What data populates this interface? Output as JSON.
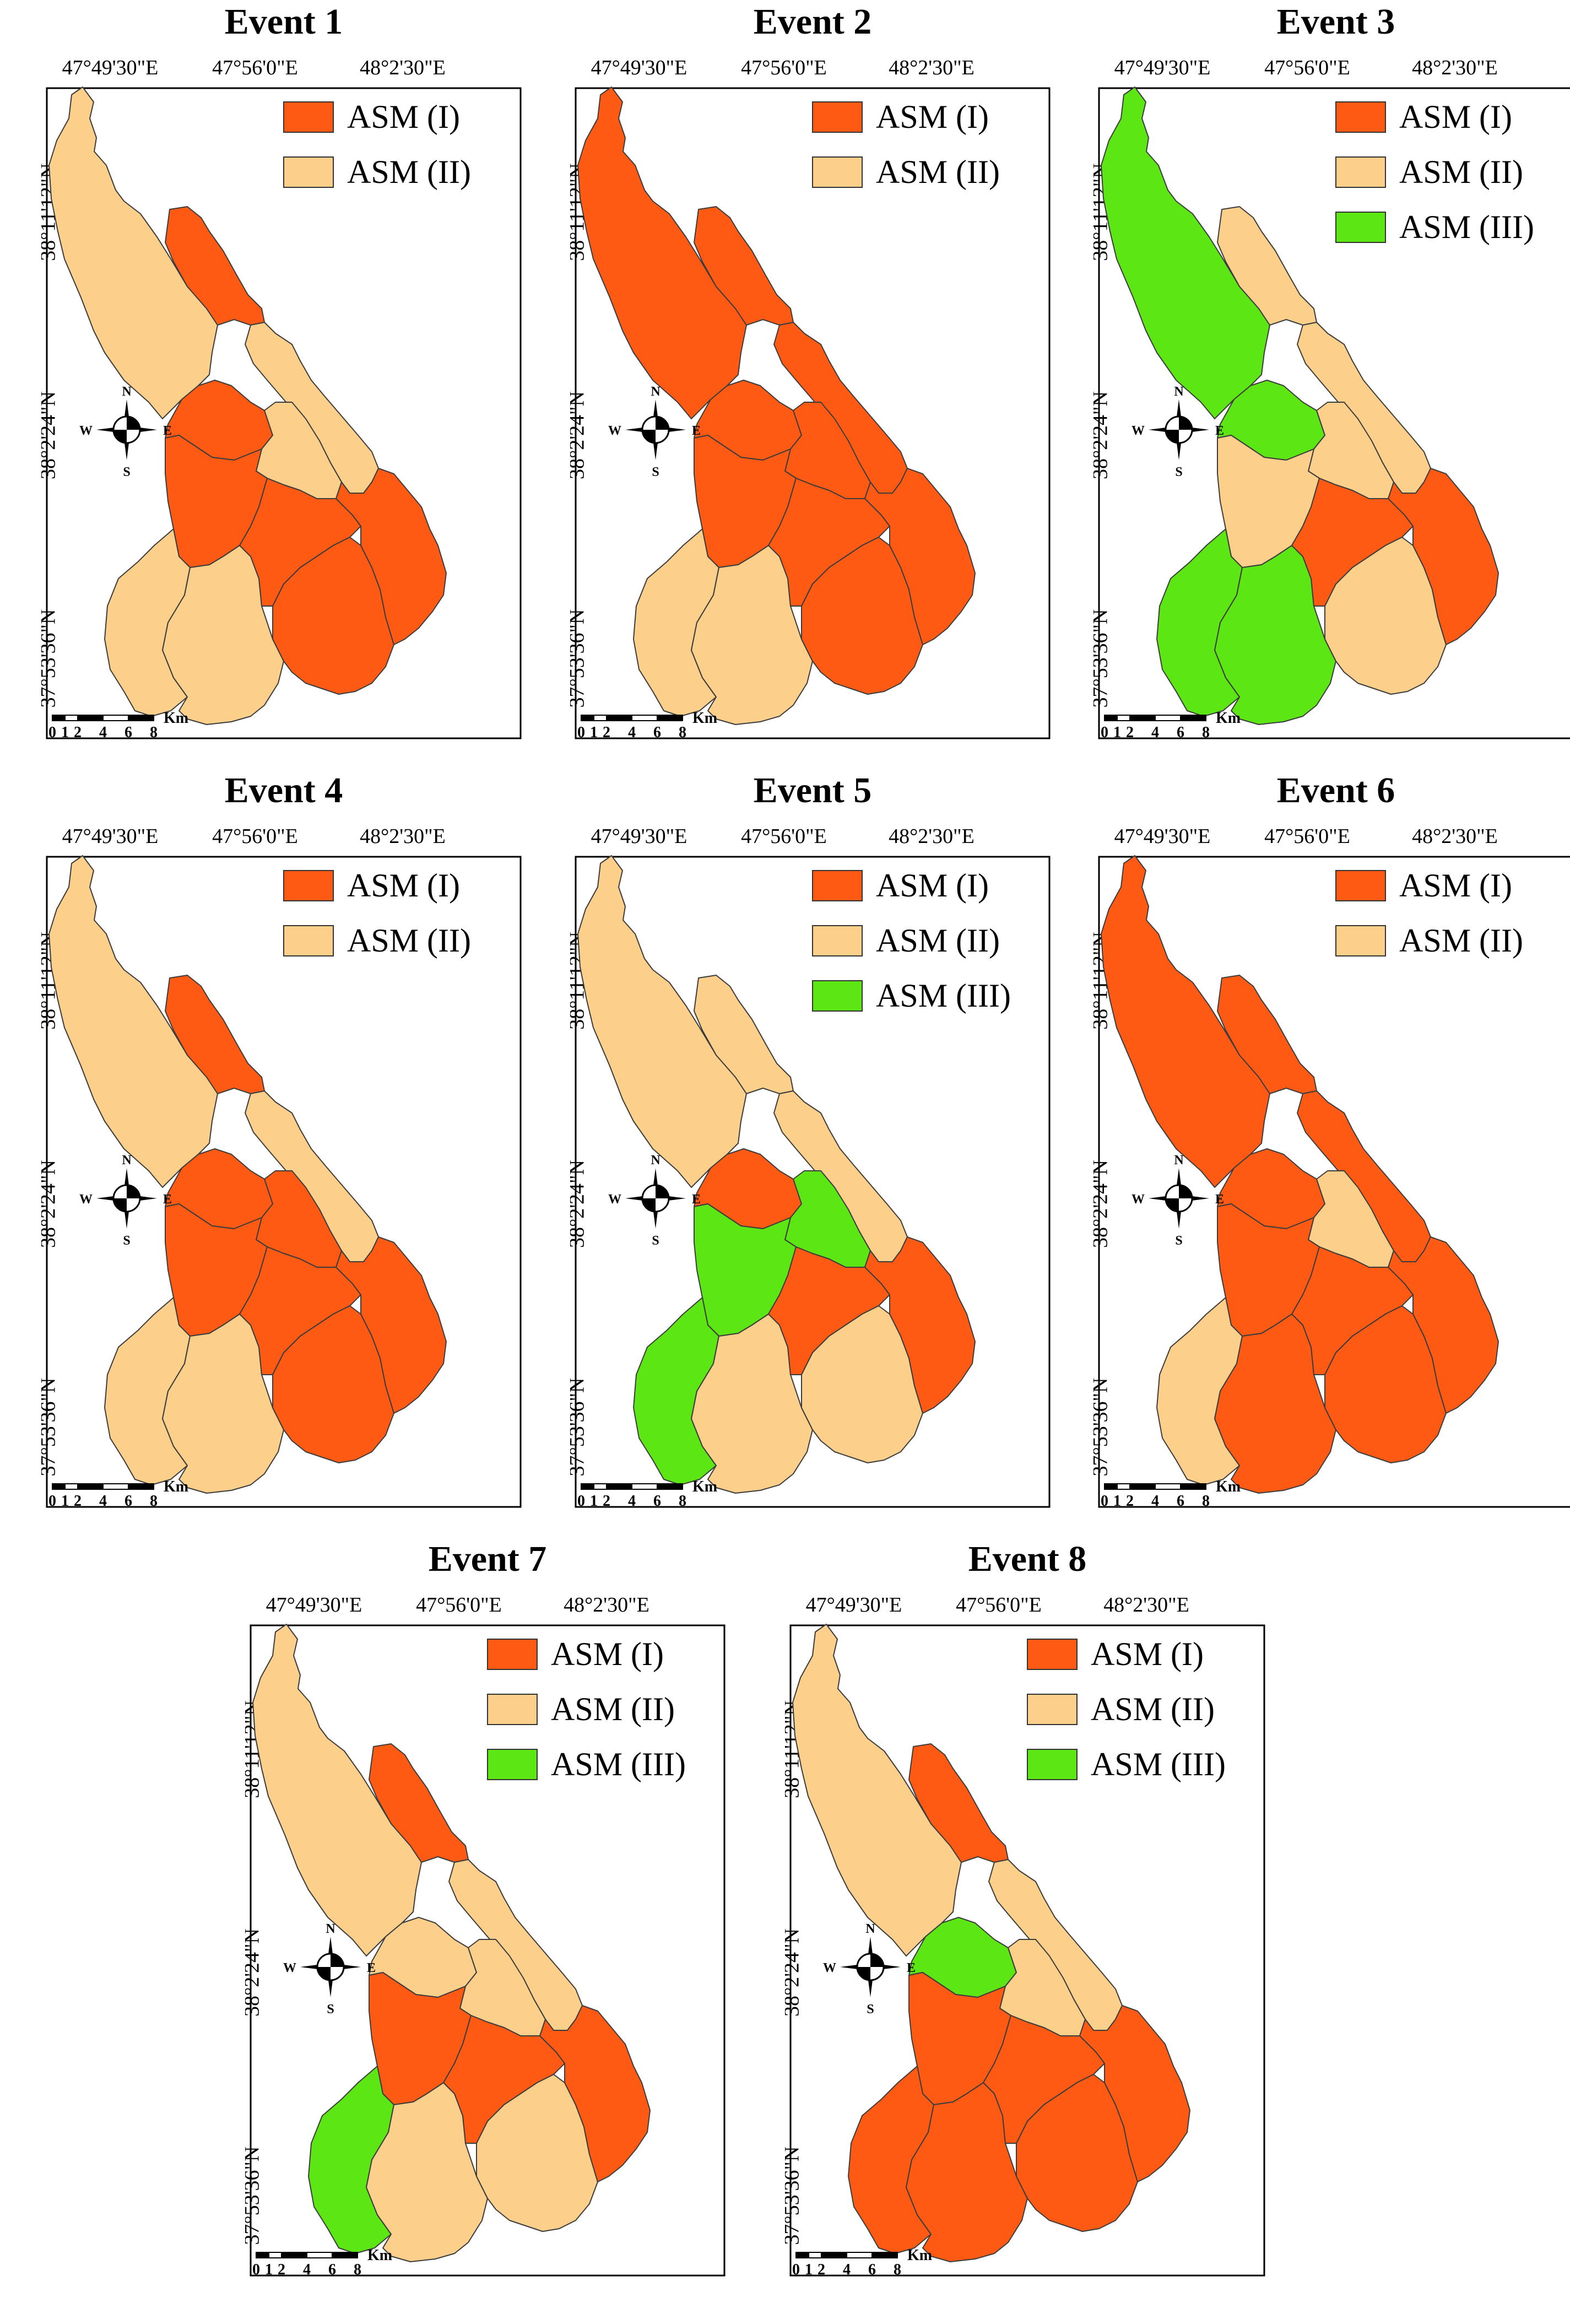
{
  "colors": {
    "ASM (I)": "#ff5a14",
    "ASM (II)": "#fcd08a",
    "ASM (III)": "#5ce614",
    "boundary": "#3c3c3c",
    "frame": "#000000"
  },
  "common": {
    "lon_labels": [
      "47°49'30\"E",
      "47°56'0\"E",
      "48°2'30\"E"
    ],
    "lat_labels": [
      "38°11'12\"N",
      "38°2'24\"N",
      "37°53'36\"N"
    ],
    "compass": {
      "n": "N",
      "s": "S",
      "e": "E",
      "w": "W"
    },
    "scale_numbers": [
      "0",
      "1",
      "2",
      "4",
      "6",
      "8"
    ],
    "scale_unit": "Km"
  },
  "events": [
    {
      "title": "Event 1",
      "legend": [
        "ASM (I)",
        "ASM (II)"
      ],
      "zones": [
        "ASM (II)",
        "ASM (I)",
        "ASM (II)",
        "ASM (I)",
        "ASM (II)",
        "ASM (I)",
        "ASM (II)",
        "ASM (II)",
        "ASM (I)",
        "ASM (I)",
        "ASM (I)"
      ]
    },
    {
      "title": "Event 2",
      "legend": [
        "ASM (I)",
        "ASM (II)"
      ],
      "zones": [
        "ASM (I)",
        "ASM (I)",
        "ASM (I)",
        "ASM (I)",
        "ASM (I)",
        "ASM (I)",
        "ASM (II)",
        "ASM (II)",
        "ASM (I)",
        "ASM (I)",
        "ASM (I)"
      ]
    },
    {
      "title": "Event 3",
      "legend": [
        "ASM (I)",
        "ASM (II)",
        "ASM (III)"
      ],
      "zones": [
        "ASM (III)",
        "ASM (II)",
        "ASM (II)",
        "ASM (III)",
        "ASM (II)",
        "ASM (II)",
        "ASM (III)",
        "ASM (III)",
        "ASM (I)",
        "ASM (II)",
        "ASM (I)"
      ]
    },
    {
      "title": "Event 4",
      "legend": [
        "ASM (I)",
        "ASM (II)"
      ],
      "zones": [
        "ASM (II)",
        "ASM (I)",
        "ASM (II)",
        "ASM (I)",
        "ASM (I)",
        "ASM (I)",
        "ASM (II)",
        "ASM (II)",
        "ASM (I)",
        "ASM (I)",
        "ASM (I)"
      ]
    },
    {
      "title": "Event 5",
      "legend": [
        "ASM (I)",
        "ASM (II)",
        "ASM (III)"
      ],
      "zones": [
        "ASM (II)",
        "ASM (II)",
        "ASM (II)",
        "ASM (I)",
        "ASM (III)",
        "ASM (III)",
        "ASM (III)",
        "ASM (II)",
        "ASM (I)",
        "ASM (II)",
        "ASM (I)"
      ]
    },
    {
      "title": "Event 6",
      "legend": [
        "ASM (I)",
        "ASM (II)"
      ],
      "zones": [
        "ASM (I)",
        "ASM (I)",
        "ASM (I)",
        "ASM (I)",
        "ASM (II)",
        "ASM (I)",
        "ASM (II)",
        "ASM (I)",
        "ASM (I)",
        "ASM (I)",
        "ASM (I)"
      ]
    },
    {
      "title": "Event 7",
      "legend": [
        "ASM (I)",
        "ASM (II)",
        "ASM (III)"
      ],
      "zones": [
        "ASM (II)",
        "ASM (I)",
        "ASM (II)",
        "ASM (II)",
        "ASM (II)",
        "ASM (I)",
        "ASM (III)",
        "ASM (II)",
        "ASM (I)",
        "ASM (II)",
        "ASM (I)"
      ]
    },
    {
      "title": "Event 8",
      "legend": [
        "ASM (I)",
        "ASM (II)",
        "ASM (III)"
      ],
      "zones": [
        "ASM (II)",
        "ASM (I)",
        "ASM (II)",
        "ASM (III)",
        "ASM (II)",
        "ASM (I)",
        "ASM (I)",
        "ASM (I)",
        "ASM (I)",
        "ASM (I)",
        "ASM (I)"
      ]
    }
  ]
}
